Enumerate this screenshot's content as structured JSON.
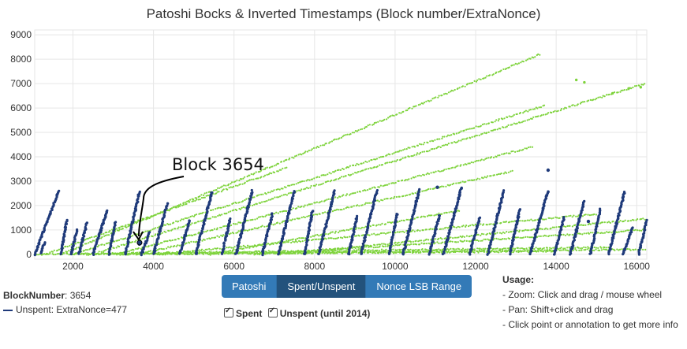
{
  "chart_data": {
    "type": "scatter",
    "title": "Patoshi Bocks & Inverted Timestamps (Block number/ExtraNonce)",
    "xlabel": "",
    "ylabel": "",
    "xlim": [
      1050,
      16250
    ],
    "ylim": [
      -200,
      9200
    ],
    "x_ticks": [
      2000,
      4000,
      6000,
      8000,
      10000,
      12000,
      14000,
      16000
    ],
    "y_ticks": [
      0,
      1000,
      2000,
      3000,
      4000,
      5000,
      6000,
      7000,
      8000,
      9000
    ],
    "grid": true,
    "series": [
      {
        "name": "Unspent",
        "color": "#1f3a7a",
        "ramps": [
          [
            1050,
            1650,
            0,
            2600
          ],
          [
            1200,
            1300,
            50,
            500
          ],
          [
            1700,
            1850,
            0,
            1400
          ],
          [
            1950,
            2100,
            0,
            1000
          ],
          [
            2150,
            2350,
            0,
            1300
          ],
          [
            2500,
            2850,
            0,
            1800
          ],
          [
            2900,
            3050,
            0,
            1300
          ],
          [
            3300,
            3650,
            0,
            2550
          ],
          [
            3700,
            3900,
            0,
            900
          ],
          [
            4000,
            4350,
            0,
            2100
          ],
          [
            4650,
            4900,
            0,
            1400
          ],
          [
            5050,
            5450,
            0,
            2550
          ],
          [
            5700,
            5900,
            0,
            1450
          ],
          [
            6050,
            6450,
            0,
            2600
          ],
          [
            6700,
            6950,
            0,
            1650
          ],
          [
            7100,
            7500,
            0,
            2600
          ],
          [
            7750,
            7950,
            0,
            1800
          ],
          [
            8100,
            8500,
            0,
            2600
          ],
          [
            8850,
            9050,
            0,
            1550
          ],
          [
            9150,
            9550,
            0,
            2600
          ],
          [
            9850,
            10050,
            0,
            1650
          ],
          [
            10200,
            10600,
            0,
            2650
          ],
          [
            10850,
            11100,
            0,
            1600
          ],
          [
            11200,
            11650,
            0,
            2750
          ],
          [
            11850,
            12100,
            0,
            1500
          ],
          [
            12300,
            12700,
            0,
            2600
          ],
          [
            12850,
            13100,
            0,
            1850
          ],
          [
            13350,
            13800,
            0,
            2600
          ],
          [
            13950,
            14200,
            0,
            1500
          ],
          [
            14350,
            14700,
            0,
            2200
          ],
          [
            14850,
            15100,
            0,
            1850
          ],
          [
            15300,
            15700,
            0,
            2550
          ],
          [
            15650,
            15900,
            0,
            1100
          ],
          [
            16050,
            16250,
            0,
            1400
          ]
        ],
        "points": [
          [
            13800,
            3450
          ],
          [
            11050,
            2750
          ],
          [
            14500,
            1000
          ],
          [
            14800,
            1350
          ],
          [
            3650,
            420
          ]
        ]
      },
      {
        "name": "Spent",
        "color": "#7ed33c",
        "ramps": [
          [
            1300,
            7300,
            0,
            3550
          ],
          [
            1700,
            13600,
            0,
            8200
          ],
          [
            2000,
            13700,
            0,
            6100
          ],
          [
            2500,
            16200,
            0,
            7000
          ],
          [
            3100,
            13400,
            0,
            4400
          ],
          [
            3600,
            12900,
            0,
            3400
          ],
          [
            4100,
            15000,
            0,
            1650
          ],
          [
            5400,
            11600,
            0,
            1800
          ],
          [
            7100,
            16200,
            0,
            1450
          ],
          [
            6500,
            16200,
            0,
            1000
          ],
          [
            1050,
            15300,
            0,
            280
          ],
          [
            2200,
            16200,
            0,
            200
          ],
          [
            3000,
            14000,
            0,
            120
          ]
        ],
        "points": [
          [
            14500,
            7150
          ],
          [
            14700,
            7050
          ],
          [
            15800,
            6800
          ],
          [
            16100,
            6850
          ],
          [
            15400,
            6600
          ]
        ]
      }
    ],
    "annotation": {
      "text": "Block 3654",
      "x": 3654,
      "y": 477
    }
  },
  "legend": {
    "label": "BlockNumber",
    "value": "3654",
    "series_text": "Unspent: ExtraNonce=477"
  },
  "buttons": [
    {
      "label": "Patoshi",
      "active": false
    },
    {
      "label": "Spent/Unspent",
      "active": true
    },
    {
      "label": "Nonce LSB Range",
      "active": false
    }
  ],
  "filters": {
    "spent": "Spent",
    "unspent": "Unspent (until 2014)"
  },
  "usage": {
    "heading": "Usage:",
    "lines": [
      "- Zoom: Click and drag / mouse wheel",
      "- Pan: Shift+click and drag",
      "- Click point or annotation to get more info"
    ]
  }
}
